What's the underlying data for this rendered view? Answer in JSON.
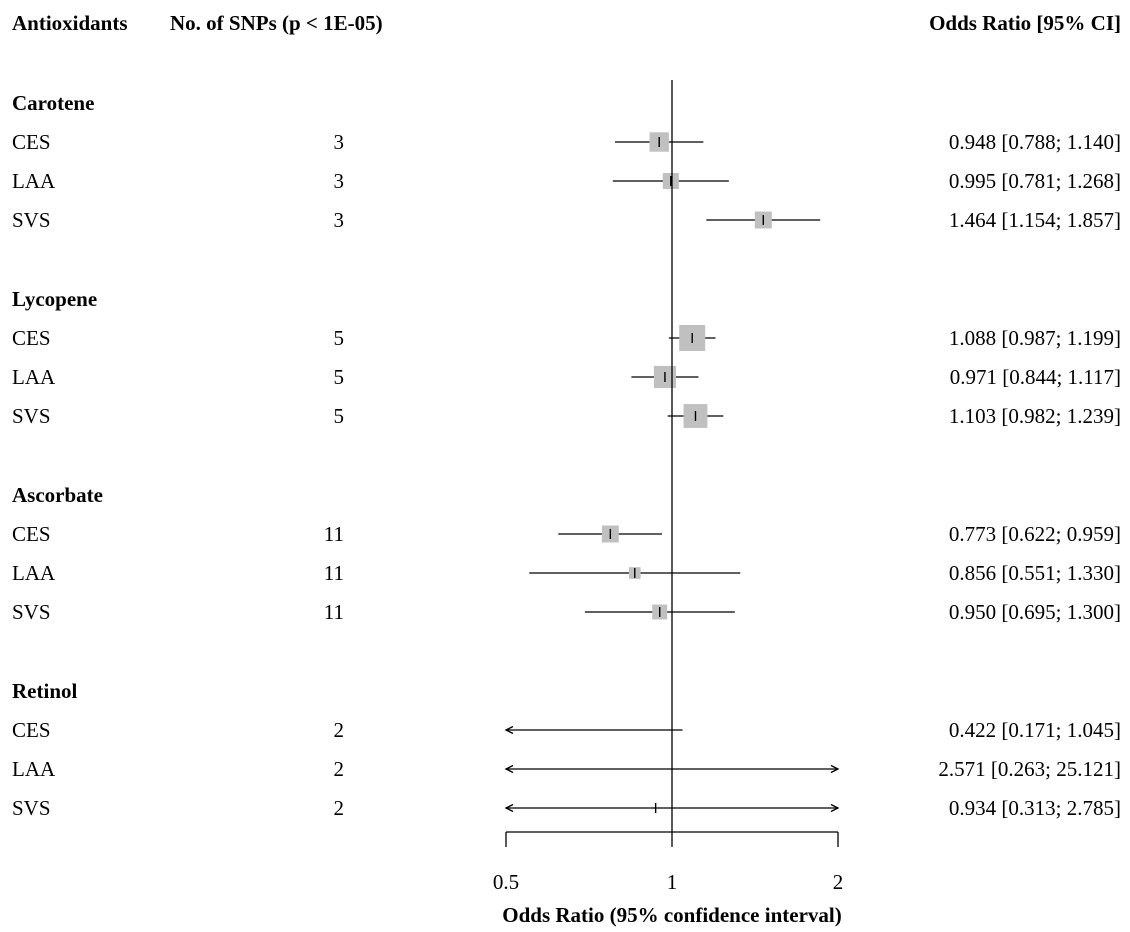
{
  "chart_data": {
    "type": "forest",
    "headers": {
      "col1": "Antioxidants",
      "col2": "No. of SNPs (p < 1E-05)",
      "col3": "Odds Ratio [95% CI]"
    },
    "x_scale": "log",
    "xlim": [
      0.5,
      2
    ],
    "x_ticks": [
      "0.5",
      "1",
      "2"
    ],
    "xlabel": "Odds Ratio (95% confidence interval)",
    "reference_line": 1,
    "groups": [
      {
        "name": "Carotene",
        "rows": [
          {
            "label": "CES",
            "snps": "3",
            "or": 0.948,
            "lo": 0.788,
            "hi": 1.14,
            "text": "0.948 [0.788;  1.140]",
            "weight": 0.45
          },
          {
            "label": "LAA",
            "snps": "3",
            "or": 0.995,
            "lo": 0.781,
            "hi": 1.268,
            "text": "0.995 [0.781;  1.268]",
            "weight": 0.25
          },
          {
            "label": "SVS",
            "snps": "3",
            "or": 1.464,
            "lo": 1.154,
            "hi": 1.857,
            "text": "1.464 [1.154;  1.857]",
            "weight": 0.3
          }
        ]
      },
      {
        "name": "Lycopene",
        "rows": [
          {
            "label": "CES",
            "snps": "5",
            "or": 1.088,
            "lo": 0.987,
            "hi": 1.199,
            "text": "1.088 [0.987;  1.199]",
            "weight": 1.0
          },
          {
            "label": "LAA",
            "snps": "5",
            "or": 0.971,
            "lo": 0.844,
            "hi": 1.117,
            "text": "0.971 [0.844;  1.117]",
            "weight": 0.65
          },
          {
            "label": "SVS",
            "snps": "5",
            "or": 1.103,
            "lo": 0.982,
            "hi": 1.239,
            "text": "1.103 [0.982;  1.239]",
            "weight": 0.8
          }
        ]
      },
      {
        "name": "Ascorbate",
        "rows": [
          {
            "label": "CES",
            "snps": "11",
            "or": 0.773,
            "lo": 0.622,
            "hi": 0.959,
            "text": "0.773 [0.622;  0.959]",
            "weight": 0.3
          },
          {
            "label": "LAA",
            "snps": "11",
            "or": 0.856,
            "lo": 0.551,
            "hi": 1.33,
            "text": "0.856 [0.551;  1.330]",
            "weight": 0.08
          },
          {
            "label": "SVS",
            "snps": "11",
            "or": 0.95,
            "lo": 0.695,
            "hi": 1.3,
            "text": "0.950 [0.695;  1.300]",
            "weight": 0.2
          }
        ]
      },
      {
        "name": "Retinol",
        "rows": [
          {
            "label": "CES",
            "snps": "2",
            "or": 0.422,
            "lo": 0.171,
            "hi": 1.045,
            "text": "0.422 [0.171;  1.045]",
            "weight": 0.02
          },
          {
            "label": "LAA",
            "snps": "2",
            "or": 2.571,
            "lo": 0.263,
            "hi": 25.121,
            "text": "2.571 [0.263; 25.121]",
            "weight": 0.02
          },
          {
            "label": "SVS",
            "snps": "2",
            "or": 0.934,
            "lo": 0.313,
            "hi": 2.785,
            "text": "0.934 [0.313;  2.785]",
            "weight": 0.02
          }
        ]
      }
    ],
    "colors": {
      "square": "#c0c0c0",
      "line": "#000000"
    }
  }
}
